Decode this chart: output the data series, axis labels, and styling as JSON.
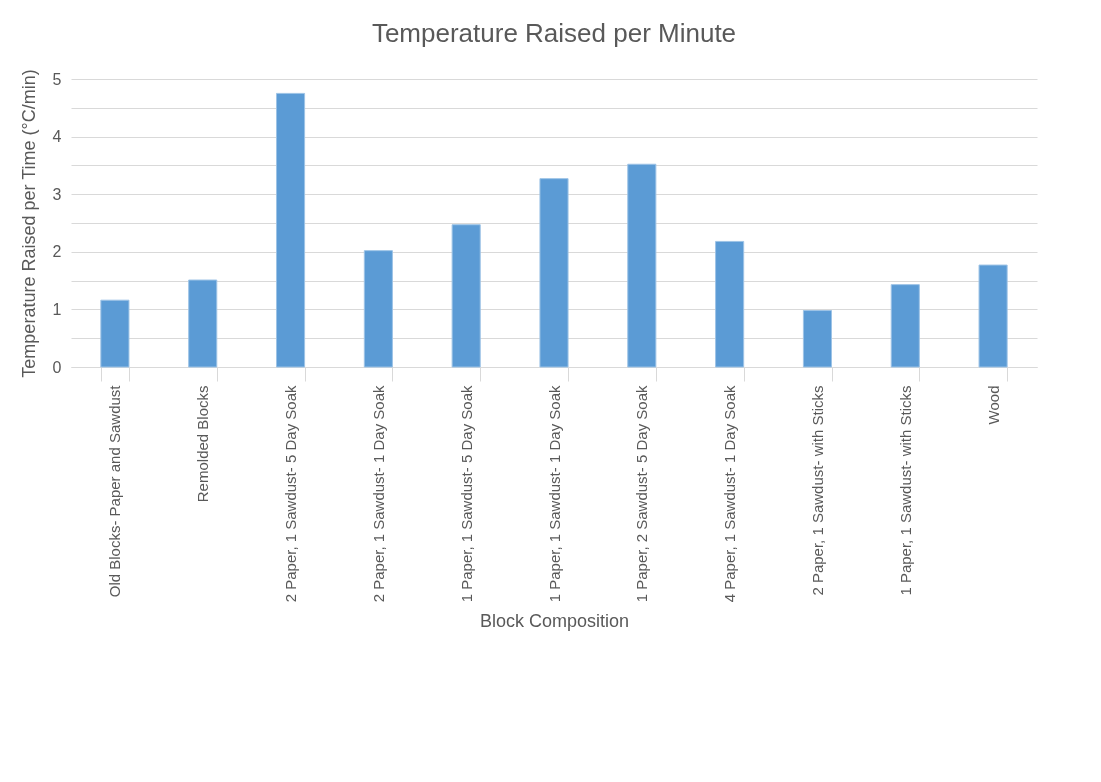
{
  "chart_data": {
    "type": "bar",
    "title": "Temperature Raised per Minute",
    "xlabel": "Block Composition",
    "ylabel": "Temperature Raised per Time (°C/min)",
    "categories": [
      "Old Blocks- Paper and Sawdust",
      "Remolded Blocks",
      "2 Paper, 1 Sawdust- 5 Day Soak",
      "2 Paper, 1 Sawdust- 1 Day Soak",
      "1 Paper, 1 Sawdust- 5 Day Soak",
      "1 Paper, 1 Sawdust- 1 Day Soak",
      "1 Paper, 2 Sawdust- 5 Day Soak",
      "4 Paper, 1 Sawdust- 1 Day Soak",
      "2 Paper, 1 Sawdust- with Sticks",
      "1 Paper, 1 Sawdust- with Sticks",
      "Wood"
    ],
    "values": [
      1.16,
      1.51,
      4.75,
      2.02,
      2.47,
      3.27,
      3.52,
      2.18,
      0.98,
      1.43,
      1.77
    ],
    "color": "#5b9bd5",
    "ylim": [
      0,
      5
    ],
    "yticks": [
      0,
      {
        "value": 0.5,
        "label": null
      },
      1,
      {
        "value": 1.5,
        "label": null
      },
      2,
      {
        "value": 2.5,
        "label": null
      },
      3,
      {
        "value": 3.5,
        "label": null
      },
      4,
      {
        "value": 4.5,
        "label": null
      },
      5
    ],
    "grid": "y"
  }
}
